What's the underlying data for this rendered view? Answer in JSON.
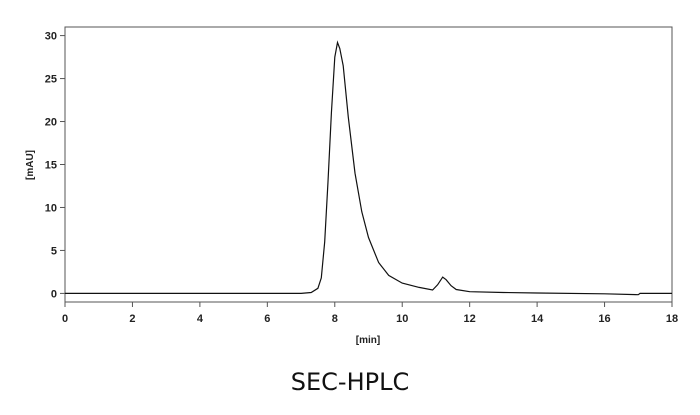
{
  "chart_data": {
    "type": "line",
    "title": "",
    "caption": "SEC-HPLC",
    "xlabel": "[min]",
    "ylabel": "[mAU]",
    "xlim": [
      0,
      18
    ],
    "ylim": [
      -1,
      31
    ],
    "xticks": [
      0,
      2,
      4,
      6,
      8,
      10,
      12,
      14,
      16,
      18
    ],
    "yticks": [
      0,
      5,
      10,
      15,
      20,
      25,
      30
    ],
    "grid": false,
    "line_color": "#111111",
    "series": [
      {
        "x": [
          0,
          7.0,
          7.3,
          7.5,
          7.6,
          7.7,
          7.8,
          7.9,
          8.0,
          8.08,
          8.15,
          8.25,
          8.4,
          8.6,
          8.8,
          9.0,
          9.3,
          9.6,
          10.0,
          10.5,
          10.9,
          11.05,
          11.2,
          11.3,
          11.45,
          11.6,
          12.0,
          13.0,
          14.0,
          16.0,
          17.0,
          17.05,
          18.0
        ],
        "y": [
          0,
          0,
          0.1,
          0.6,
          1.8,
          6,
          13,
          21,
          27.5,
          29.2,
          28.5,
          26.5,
          20.5,
          14,
          9.5,
          6.5,
          3.6,
          2.1,
          1.2,
          0.7,
          0.4,
          1.0,
          1.9,
          1.6,
          0.9,
          0.45,
          0.2,
          0.1,
          0.05,
          -0.05,
          -0.15,
          0,
          0
        ]
      }
    ]
  }
}
